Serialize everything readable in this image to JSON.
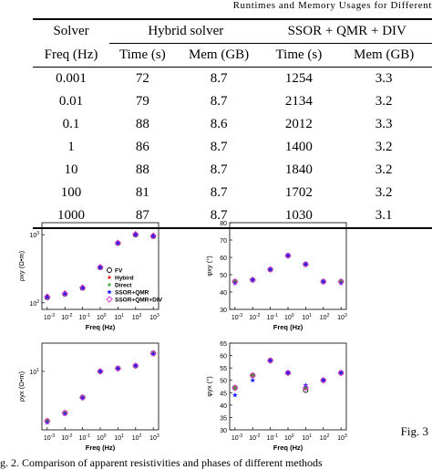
{
  "header": {
    "running_title": "Runtimes and Memory Usages for Different"
  },
  "table": {
    "col_solver": "Solver",
    "col_freq": "Freq (Hz)",
    "group_hybrid": "Hybrid solver",
    "group_ssor": "SSOR + QMR + DIV",
    "col_time": "Time (s)",
    "col_mem": "Mem (GB)",
    "rows": [
      [
        "0.001",
        "72",
        "8.7",
        "1254",
        "3.3"
      ],
      [
        "0.01",
        "79",
        "8.7",
        "2134",
        "3.2"
      ],
      [
        "0.1",
        "88",
        "8.6",
        "2012",
        "3.3"
      ],
      [
        "1",
        "86",
        "8.7",
        "1400",
        "3.2"
      ],
      [
        "10",
        "88",
        "8.7",
        "1840",
        "3.2"
      ],
      [
        "100",
        "81",
        "8.7",
        "1702",
        "3.2"
      ],
      [
        "1000",
        "87",
        "8.7",
        "1030",
        "3.1"
      ]
    ]
  },
  "figure": {
    "caption": "g. 2.   Comparison of apparent resistivities and phases of different methods",
    "side_label": "Fig. 3",
    "legend": [
      "FV",
      "Hybird",
      "Direct",
      "SSOR+QMR",
      "SSOR+QMR+DIV"
    ],
    "colors": {
      "FV": "#000000",
      "Hybird": "#e8231e",
      "Direct": "#1ea51e",
      "SSOR+QMR": "#1a1aff",
      "SSOR+QMR+DIV": "#e032d8"
    }
  },
  "chart_data": [
    {
      "type": "scatter",
      "xlabel": "Freq (Hz)",
      "ylabel": "ρxy (Ω•m)",
      "xscale": "log",
      "yscale": "log",
      "xticks": [
        "10-3",
        "10-2",
        "10-1",
        "100",
        "101",
        "102",
        "103"
      ],
      "yticks": [
        "102",
        "103"
      ],
      "xlim": [
        0.0005,
        2000
      ],
      "ylim": [
        80,
        1500
      ],
      "x": [
        0.001,
        0.01,
        0.1,
        1,
        10,
        100,
        1000
      ],
      "series": [
        {
          "name": "FV",
          "values": [
            120,
            135,
            165,
            330,
            750,
            1000,
            950
          ]
        },
        {
          "name": "Hybird",
          "values": [
            122,
            136,
            166,
            332,
            755,
            1010,
            960
          ]
        },
        {
          "name": "Direct",
          "values": [
            121,
            135,
            165,
            331,
            752,
            1005,
            955
          ]
        },
        {
          "name": "SSOR+QMR",
          "values": [
            120,
            134,
            164,
            330,
            750,
            1000,
            950
          ]
        },
        {
          "name": "SSOR+QMR+DIV",
          "values": [
            123,
            137,
            167,
            333,
            757,
            1015,
            965
          ]
        }
      ],
      "legend_position": "bottom-right"
    },
    {
      "type": "scatter",
      "xlabel": "Freq (Hz)",
      "ylabel": "φxy (°)",
      "xscale": "log",
      "xticks": [
        "10-3",
        "10-2",
        "10-1",
        "100",
        "101",
        "102",
        "103"
      ],
      "yticks": [
        "30",
        "40",
        "50",
        "60",
        "70",
        "80"
      ],
      "xlim": [
        0.0005,
        2000
      ],
      "ylim": [
        30,
        80
      ],
      "x": [
        0.001,
        0.01,
        0.1,
        1,
        10,
        100,
        1000
      ],
      "series": [
        {
          "name": "FV",
          "values": [
            46,
            47,
            53,
            61,
            56,
            46,
            46
          ]
        },
        {
          "name": "Hybird",
          "values": [
            46,
            47,
            53,
            61,
            56,
            46,
            46
          ]
        },
        {
          "name": "Direct",
          "values": [
            46,
            47,
            53,
            61,
            56,
            46,
            46
          ]
        },
        {
          "name": "SSOR+QMR",
          "values": [
            45,
            47,
            53,
            61,
            56,
            46,
            45
          ]
        },
        {
          "name": "SSOR+QMR+DIV",
          "values": [
            46,
            47,
            53,
            61,
            56,
            46,
            46
          ]
        }
      ]
    },
    {
      "type": "scatter",
      "xlabel": "Freq (Hz)",
      "ylabel": "ρyx (Ω•m)",
      "xscale": "log",
      "yscale": "log",
      "xticks": [
        "10-3",
        "10-2",
        "10-1",
        "100",
        "101",
        "102",
        "103"
      ],
      "yticks": [
        "101"
      ],
      "xlim": [
        0.0005,
        2000
      ],
      "ylim": [
        1.5,
        25
      ],
      "x": [
        0.001,
        0.01,
        0.1,
        1,
        10,
        100,
        1000
      ],
      "series": [
        {
          "name": "FV",
          "values": [
            2,
            2.6,
            4.3,
            10,
            11,
            12,
            18
          ]
        },
        {
          "name": "Hybird",
          "values": [
            2,
            2.6,
            4.3,
            10,
            11,
            12,
            18
          ]
        },
        {
          "name": "Direct",
          "values": [
            2,
            2.6,
            4.3,
            10,
            11,
            12,
            18
          ]
        },
        {
          "name": "SSOR+QMR",
          "values": [
            1.9,
            2.5,
            4.2,
            10,
            11,
            12,
            17.5
          ]
        },
        {
          "name": "SSOR+QMR+DIV",
          "values": [
            2,
            2.6,
            4.3,
            10,
            11,
            12,
            18
          ]
        }
      ]
    },
    {
      "type": "scatter",
      "xlabel": "Freq (Hz)",
      "ylabel": "φyx (°)",
      "xscale": "log",
      "xticks": [
        "10-3",
        "10-2",
        "10-1",
        "100",
        "101",
        "102",
        "103"
      ],
      "yticks": [
        "30",
        "35",
        "40",
        "45",
        "50",
        "55",
        "60",
        "65"
      ],
      "xlim": [
        0.0005,
        2000
      ],
      "ylim": [
        30,
        65
      ],
      "x": [
        0.001,
        0.01,
        0.1,
        1,
        10,
        100,
        1000
      ],
      "series": [
        {
          "name": "FV",
          "values": [
            47,
            52,
            58,
            53,
            46,
            50,
            53
          ]
        },
        {
          "name": "Hybird",
          "values": [
            47,
            52,
            58,
            53,
            47,
            50,
            53
          ]
        },
        {
          "name": "Direct",
          "values": [
            47,
            52,
            58,
            53,
            47,
            50,
            53
          ]
        },
        {
          "name": "SSOR+QMR",
          "values": [
            44,
            50,
            58,
            53,
            48,
            50,
            53
          ]
        },
        {
          "name": "SSOR+QMR+DIV",
          "values": [
            47,
            52,
            58,
            53,
            47,
            50,
            53
          ]
        }
      ]
    }
  ]
}
